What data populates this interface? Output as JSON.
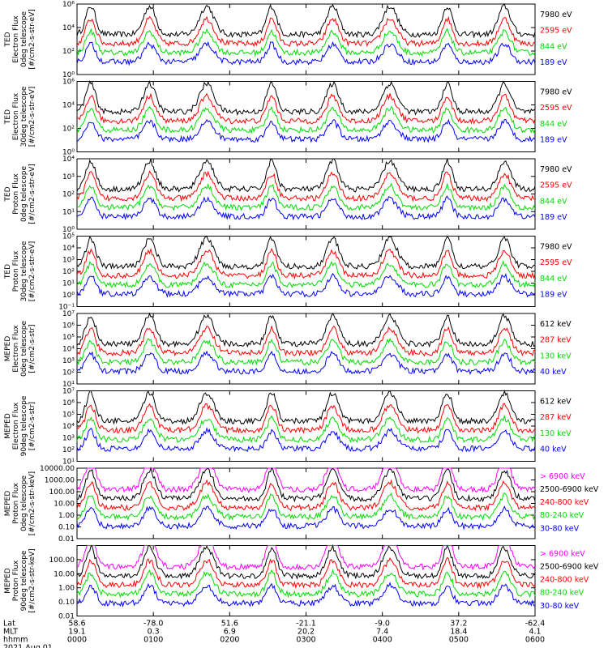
{
  "chart_data": {
    "type": "line",
    "x_axis": {
      "rows": [
        {
          "label": "Lat",
          "values": [
            "58.6",
            "-78.0",
            "51.6",
            "-21.1",
            "-9.0",
            "37.2",
            "-62.4"
          ]
        },
        {
          "label": "MLT",
          "values": [
            "19.1",
            "0.3",
            "6.9",
            "20.2",
            "7.4",
            "18.4",
            "4.1"
          ]
        },
        {
          "label": "hhmm",
          "values": [
            "0000",
            "0100",
            "0200",
            "0300",
            "0400",
            "0500",
            "0600"
          ]
        }
      ],
      "date": "2021 Aug 01",
      "range_hours": [
        0,
        6
      ]
    },
    "panels": [
      {
        "ylabel_lines": [
          "TED",
          "Electron Flux",
          "0deg telescope",
          "[#/cm2-s-str-eV]"
        ],
        "log": true,
        "ylim_exp": [
          0,
          6
        ],
        "tick_labels": [
          "10⁰",
          "10²",
          "10⁴",
          "10⁶"
        ],
        "tick_exps": [
          0,
          2,
          4,
          6
        ],
        "series": [
          {
            "name": "7980 eV",
            "color": "#000000"
          },
          {
            "name": "2595 eV",
            "color": "#ff0000"
          },
          {
            "name": "844 eV",
            "color": "#00dd00"
          },
          {
            "name": "189 eV",
            "color": "#0000ff"
          }
        ]
      },
      {
        "ylabel_lines": [
          "TED",
          "Electron Flux",
          "30deg telescope",
          "[#/cm2-s-str-eV]"
        ],
        "log": true,
        "ylim_exp": [
          0,
          6
        ],
        "tick_labels": [
          "10⁰",
          "10²",
          "10⁴",
          "10⁶"
        ],
        "tick_exps": [
          0,
          2,
          4,
          6
        ],
        "series": [
          {
            "name": "7980 eV",
            "color": "#000000"
          },
          {
            "name": "2595 eV",
            "color": "#ff0000"
          },
          {
            "name": "844 eV",
            "color": "#00dd00"
          },
          {
            "name": "189 eV",
            "color": "#0000ff"
          }
        ]
      },
      {
        "ylabel_lines": [
          "TED",
          "Proton Flux",
          "0deg telescope",
          "[#/cm2-s-str-eV]"
        ],
        "log": true,
        "ylim_exp": [
          0,
          4
        ],
        "tick_labels": [
          "10⁰",
          "10¹",
          "10²",
          "10³",
          "10⁴"
        ],
        "tick_exps": [
          0,
          1,
          2,
          3,
          4
        ],
        "series": [
          {
            "name": "7980 eV",
            "color": "#000000"
          },
          {
            "name": "2595 eV",
            "color": "#ff0000"
          },
          {
            "name": "844 eV",
            "color": "#00dd00"
          },
          {
            "name": "189 eV",
            "color": "#0000ff"
          }
        ]
      },
      {
        "ylabel_lines": [
          "TED",
          "Proton Flux",
          "30deg telescope",
          "[#/cm2-s-str-eV]"
        ],
        "log": true,
        "ylim_exp": [
          -1,
          5
        ],
        "tick_labels": [
          "10⁻¹",
          "10⁰",
          "10¹",
          "10²",
          "10³",
          "10⁴",
          "10⁵"
        ],
        "tick_exps": [
          -1,
          0,
          1,
          2,
          3,
          4,
          5
        ],
        "series": [
          {
            "name": "7980 eV",
            "color": "#000000"
          },
          {
            "name": "2595 eV",
            "color": "#ff0000"
          },
          {
            "name": "844 eV",
            "color": "#00dd00"
          },
          {
            "name": "189 eV",
            "color": "#0000ff"
          }
        ]
      },
      {
        "ylabel_lines": [
          "MEPED",
          "Electron Flux",
          "0deg telescope",
          "[#/cm2-s-str]"
        ],
        "log": true,
        "ylim_exp": [
          1,
          7
        ],
        "tick_labels": [
          "10¹",
          "10²",
          "10³",
          "10⁴",
          "10⁵",
          "10⁶",
          "10⁷"
        ],
        "tick_exps": [
          1,
          2,
          3,
          4,
          5,
          6,
          7
        ],
        "series": [
          {
            "name": "612 keV",
            "color": "#000000"
          },
          {
            "name": "287 keV",
            "color": "#ff0000"
          },
          {
            "name": "130 keV",
            "color": "#00dd00"
          },
          {
            "name": "40 keV",
            "color": "#0000ff"
          }
        ]
      },
      {
        "ylabel_lines": [
          "MEPED",
          "Electron Flux",
          "90deg telescope",
          "[#/cm2-s-str]"
        ],
        "log": true,
        "ylim_exp": [
          1,
          7
        ],
        "tick_labels": [
          "10¹",
          "10²",
          "10³",
          "10⁴",
          "10⁵",
          "10⁶",
          "10⁷"
        ],
        "tick_exps": [
          1,
          2,
          3,
          4,
          5,
          6,
          7
        ],
        "series": [
          {
            "name": "612 keV",
            "color": "#000000"
          },
          {
            "name": "287 keV",
            "color": "#ff0000"
          },
          {
            "name": "130 keV",
            "color": "#00dd00"
          },
          {
            "name": "40 keV",
            "color": "#0000ff"
          }
        ]
      },
      {
        "ylabel_lines": [
          "MEPED",
          "Proton Flux",
          "0deg telescope",
          "[#/cm2-s-str-keV]"
        ],
        "log": true,
        "ylim_exp": [
          -2,
          4
        ],
        "tick_labels": [
          "0.01",
          "0.10",
          "1.00",
          "10.00",
          "100.00",
          "1000.00",
          "10000.00"
        ],
        "tick_exps": [
          -2,
          -1,
          0,
          1,
          2,
          3,
          4
        ],
        "series": [
          {
            "name": "> 6900 keV",
            "color": "#ff00ff"
          },
          {
            "name": "2500-6900 keV",
            "color": "#000000"
          },
          {
            "name": "240-800 keV",
            "color": "#ff0000"
          },
          {
            "name": "80-240 keV",
            "color": "#00dd00"
          },
          {
            "name": "30-80 keV",
            "color": "#0000ff"
          }
        ]
      },
      {
        "ylabel_lines": [
          "MEPED",
          "Proton Flux",
          "90deg telescope",
          "[#/cm2-s-str-keV]"
        ],
        "log": true,
        "ylim_exp": [
          -2,
          3
        ],
        "tick_labels": [
          "0.01",
          "0.10",
          "1.00",
          "10.00",
          "100.00"
        ],
        "tick_exps": [
          -2,
          -1,
          0,
          1,
          2
        ],
        "series": [
          {
            "name": "> 6900 keV",
            "color": "#ff00ff"
          },
          {
            "name": "2500-6900 keV",
            "color": "#000000"
          },
          {
            "name": "240-800 keV",
            "color": "#ff0000"
          },
          {
            "name": "80-240 keV",
            "color": "#00dd00"
          },
          {
            "name": "30-80 keV",
            "color": "#0000ff"
          }
        ]
      }
    ]
  }
}
